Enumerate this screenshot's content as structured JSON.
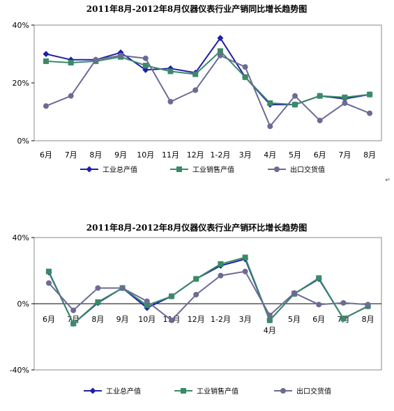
{
  "chart_data": [
    {
      "type": "line",
      "title": "2011年8月-2012年8月仪器仪表行业产销同比增长趋势图",
      "categories": [
        "6月",
        "7月",
        "8月",
        "9月",
        "10月",
        "11月",
        "12月",
        "1-2月",
        "3月",
        "4月",
        "5月",
        "6月",
        "7月",
        "8月"
      ],
      "y_ticks": [
        "0%",
        "20%",
        "40%"
      ],
      "ylim": [
        0,
        40
      ],
      "legend_position": "bottom",
      "series": [
        {
          "name": "工业总产值",
          "color": "#1f1fa8",
          "marker": "diamond",
          "values": [
            30,
            28,
            28,
            30.5,
            24.5,
            25,
            23.5,
            35.5,
            22,
            12.5,
            12.5,
            15.5,
            14.5,
            16
          ]
        },
        {
          "name": "工业销售产值",
          "color": "#3a8a68",
          "marker": "square",
          "values": [
            27.5,
            27,
            27.5,
            29,
            26,
            24,
            23,
            31,
            22,
            13,
            12.5,
            15.5,
            15,
            16
          ]
        },
        {
          "name": "出口交货值",
          "color": "#6b6b95",
          "marker": "circle",
          "values": [
            12,
            15.5,
            28,
            29.5,
            28.5,
            13.5,
            17.5,
            29.5,
            25.5,
            5,
            15.5,
            7,
            13,
            9.5
          ]
        }
      ]
    },
    {
      "type": "line",
      "title": "2011年8月-2012年8月仪器仪表行业产销环比增长趋势图",
      "categories": [
        "6月",
        "7月",
        "8月",
        "9月",
        "10月",
        "11月",
        "12月",
        "1-2月",
        "3月",
        "4月",
        "5月",
        "6月",
        "7月",
        "8月"
      ],
      "y_ticks": [
        "-40%",
        "0%",
        "40%"
      ],
      "ylim": [
        -40,
        40
      ],
      "legend_position": "bottom",
      "series": [
        {
          "name": "工业总产值",
          "color": "#1f1fa8",
          "marker": "diamond",
          "values": [
            19,
            -12,
            0.5,
            9.5,
            -2.5,
            4.5,
            15,
            23,
            27,
            -10,
            6,
            15,
            -9,
            -1.5
          ]
        },
        {
          "name": "工业销售产值",
          "color": "#3a8a68",
          "marker": "square",
          "values": [
            19.5,
            -12,
            1,
            9.5,
            -1,
            4.5,
            15,
            24,
            28,
            -10,
            6,
            15.5,
            -9,
            -1.5
          ]
        },
        {
          "name": "出口交货值",
          "color": "#6b6b95",
          "marker": "circle",
          "values": [
            12.5,
            -4,
            9.5,
            9.5,
            1.5,
            -10,
            5.5,
            17,
            19.5,
            -7,
            6.5,
            -0.5,
            0.5,
            -0.5
          ]
        }
      ]
    }
  ],
  "stray_mark": "↵"
}
